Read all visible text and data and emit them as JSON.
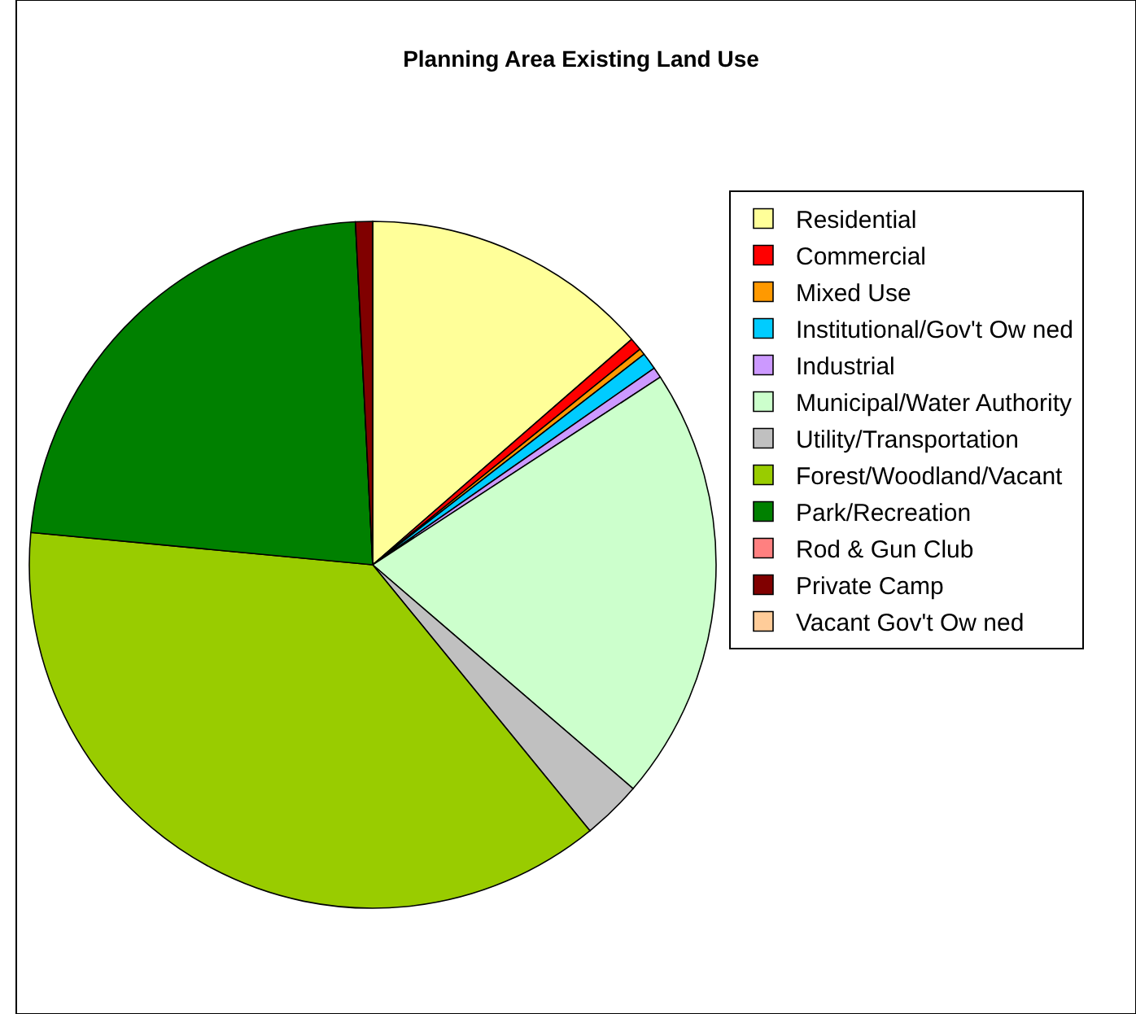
{
  "chart_data": {
    "type": "pie",
    "title": "Planning Area Existing Land Use",
    "categories": [
      "Residential",
      "Commercial",
      "Mixed Use",
      "Institutional/Gov't Ow ned",
      "Industrial",
      "Municipal/Water Authority",
      "Utility/Transportation",
      "Forest/Woodland/Vacant",
      "Park/Recreation",
      "Rod & Gun Club",
      "Private Camp",
      "Vacant Gov't Ow ned"
    ],
    "values": [
      13.6,
      0.6,
      0.3,
      0.8,
      0.5,
      20.5,
      2.8,
      37.4,
      22.7,
      0,
      0.8,
      0
    ],
    "colors": [
      "#ffff99",
      "#ff0000",
      "#ff9900",
      "#00ccff",
      "#cc99ff",
      "#ccffcc",
      "#c0c0c0",
      "#99cc00",
      "#008000",
      "#ff8080",
      "#800000",
      "#ffcc99"
    ],
    "legend": "right"
  }
}
